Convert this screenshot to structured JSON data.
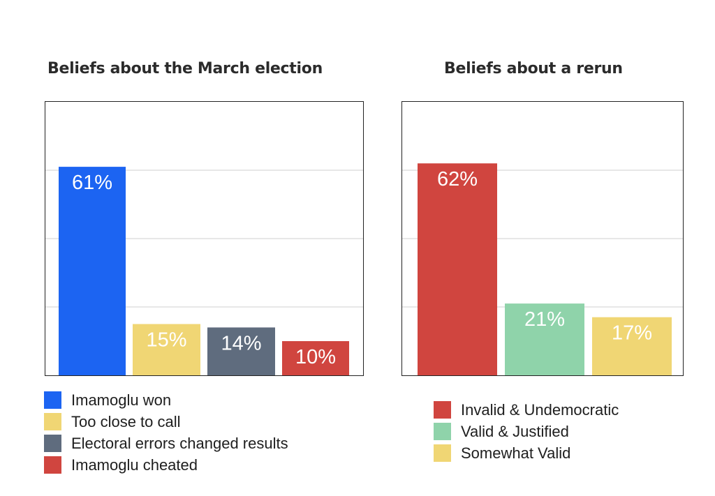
{
  "chart_data": [
    {
      "type": "bar",
      "title": "Beliefs about the March election",
      "categories": [
        "Imamoglu won",
        "Too close to call",
        "Electoral errors changed results",
        "Imamoglu cheated"
      ],
      "values": [
        61,
        15,
        14,
        10
      ],
      "value_labels": [
        "61%",
        "15%",
        "14%",
        "10%"
      ],
      "colors": [
        "#1c64f2",
        "#f0d674",
        "#5f6c7e",
        "#d0453f"
      ],
      "ylim": [
        0,
        80
      ],
      "grid": true,
      "legend": "bottom"
    },
    {
      "type": "bar",
      "title": "Beliefs about a rerun",
      "categories": [
        "Invalid & Undemocratic",
        "Valid & Justified",
        "Somewhat Valid"
      ],
      "values": [
        62,
        21,
        17
      ],
      "value_labels": [
        "62%",
        "21%",
        "17%"
      ],
      "colors": [
        "#d0453f",
        "#8fd3aa",
        "#f0d674"
      ],
      "ylim": [
        0,
        80
      ],
      "grid": true,
      "legend": "bottom"
    }
  ]
}
